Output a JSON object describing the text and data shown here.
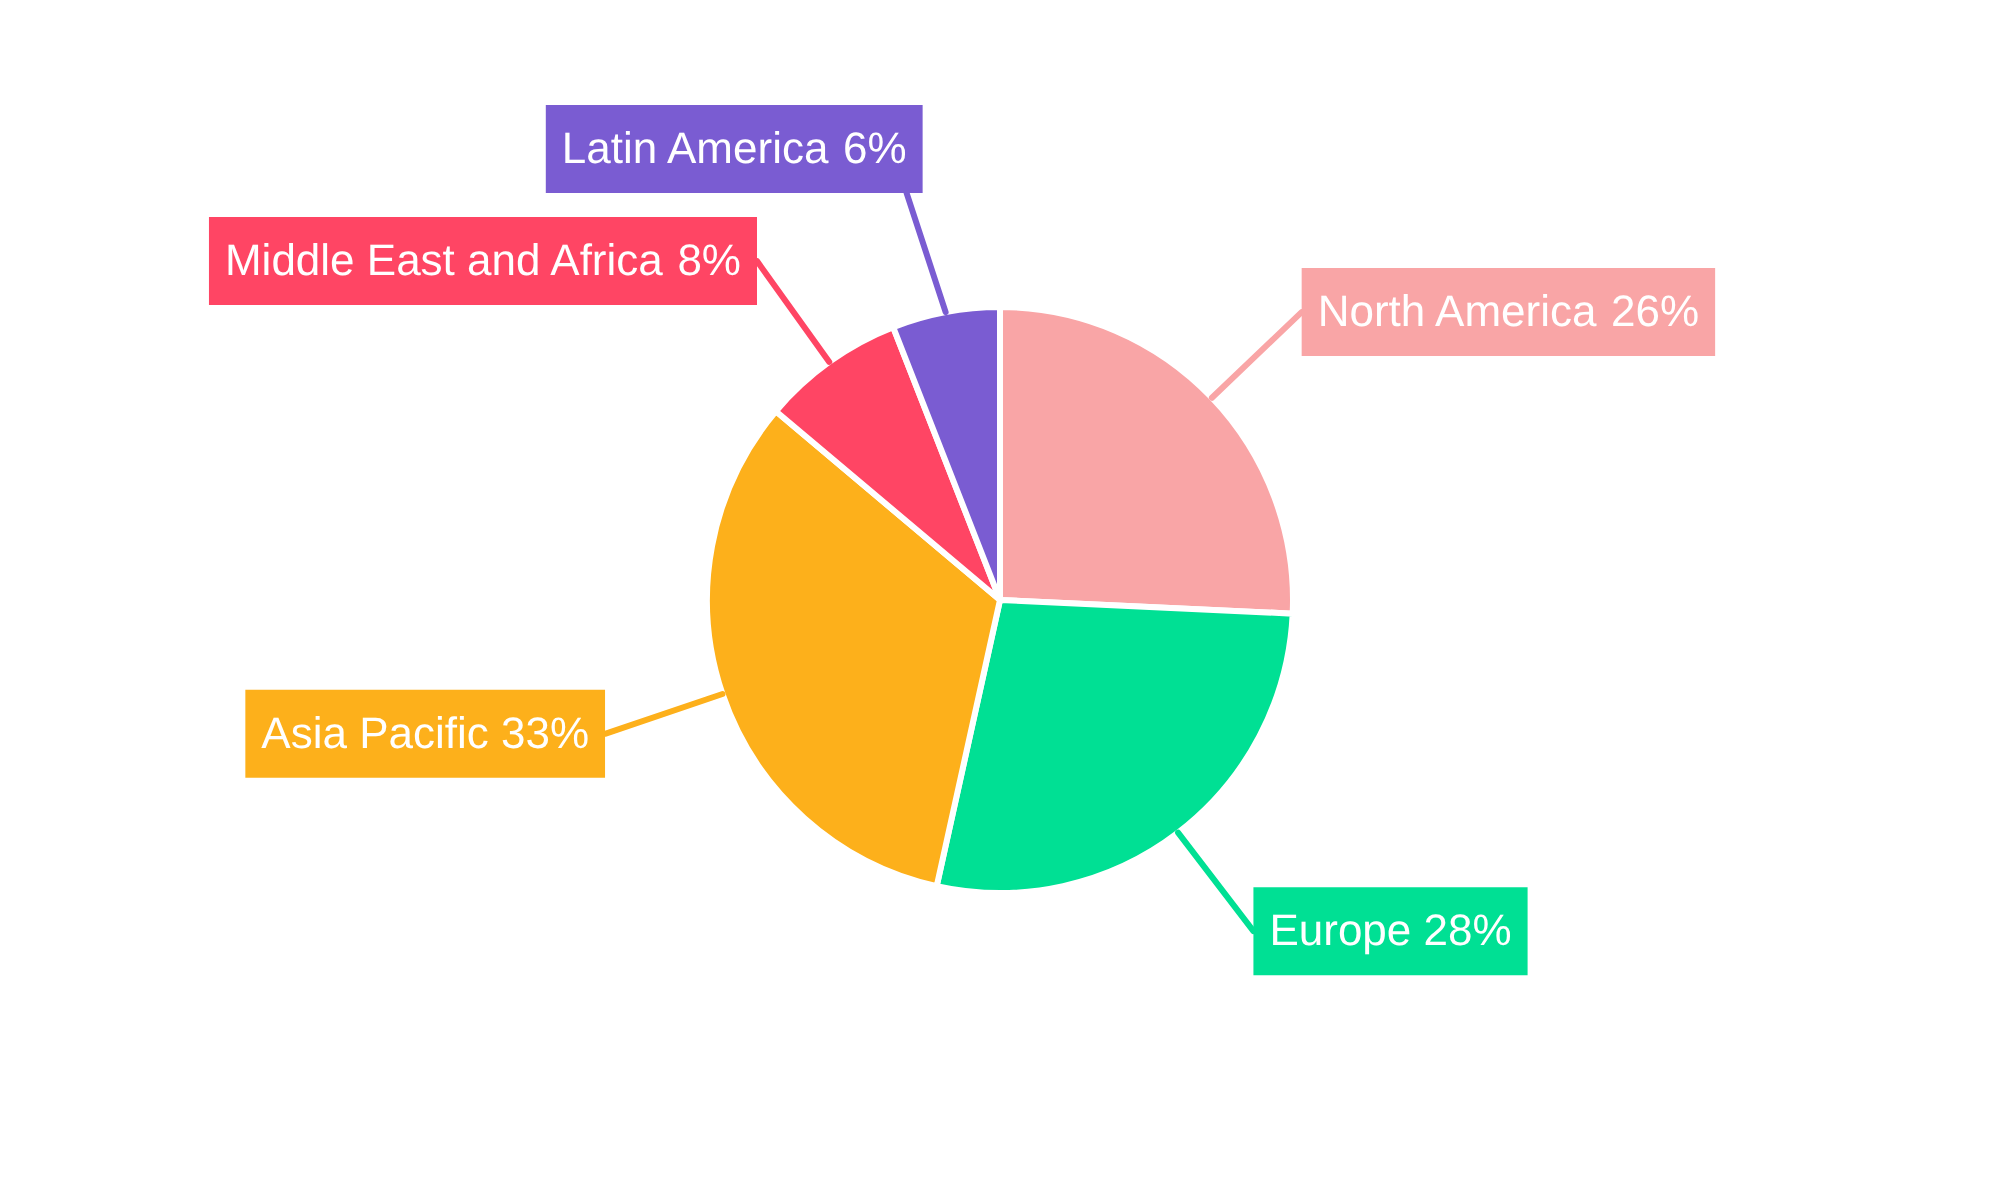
{
  "chart_data": {
    "type": "pie",
    "categories": [
      "North America",
      "Europe",
      "Asia Pacific",
      "Middle East and Africa",
      "Latin America"
    ],
    "values": [
      26,
      28,
      33,
      8,
      6
    ],
    "colors": [
      "#f9a5a6",
      "#00e094",
      "#fdb01b",
      "#ff4564",
      "#7a5cd2"
    ],
    "value_labels": [
      "26%",
      "28%",
      "33%",
      "8%",
      "6%"
    ],
    "legend": false
  }
}
